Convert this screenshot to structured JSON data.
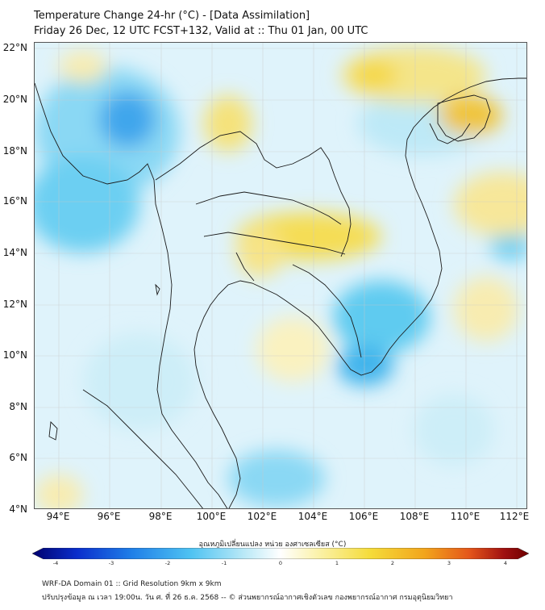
{
  "title": {
    "line1": "Temperature Change 24-hr (°C) - [Data Assimilation]",
    "line2": "Friday 26 Dec, 12 UTC FCST+132, Valid at :: Thu 01 Jan, 00 UTC"
  },
  "map": {
    "lat_labels": [
      "22°N",
      "20°N",
      "18°N",
      "16°N",
      "14°N",
      "12°N",
      "10°N",
      "8°N",
      "6°N",
      "4°N"
    ],
    "lon_labels": [
      "94°E",
      "96°E",
      "98°E",
      "100°E",
      "102°E",
      "104°E",
      "106°E",
      "108°E",
      "110°E",
      "112°E"
    ],
    "extent": {
      "lon_min": 93,
      "lon_max": 112.5,
      "lat_min": 4,
      "lat_max": 22.2
    },
    "grid": true,
    "field": "24-hr temperature change",
    "colors": {
      "strong_cool": "#1b7fe0",
      "cool": "#5fcbf0",
      "light_cool": "#bfe9f7",
      "neutral": "#ffffff",
      "light_warm": "#fbf3b0",
      "warm": "#f4dc3c",
      "strong_warm": "#f0b020",
      "coastline": "#1a1a1a"
    }
  },
  "colorbar": {
    "title": "อุณหภูมิเปลี่ยนแปลง หน่วย องศาเซลเซียส (°C)",
    "ticks": [
      "-4",
      "-3",
      "-2",
      "-1",
      "0",
      "1",
      "2",
      "3",
      "4"
    ],
    "min": -4,
    "max": 4,
    "colors": [
      "#00006e",
      "#0a2ecc",
      "#1f7fe8",
      "#4fc3f2",
      "#bdeaf7",
      "#ffffff",
      "#fbf3b0",
      "#f5dc3a",
      "#f2a51c",
      "#e4561a",
      "#a01010",
      "#6e0000"
    ]
  },
  "footer": {
    "line1": "WRF-DA Domain 01 :: Grid Resolution 9km x 9km",
    "line2": "ปรับปรุงข้อมูล ณ เวลา 19:00น. วัน ศ. ที่ 26 ธ.ค. 2568 -- © ส่วนพยากรณ์อากาศเชิงตัวเลข กองพยากรณ์อากาศ กรมอุตุนิยมวิทยา"
  }
}
